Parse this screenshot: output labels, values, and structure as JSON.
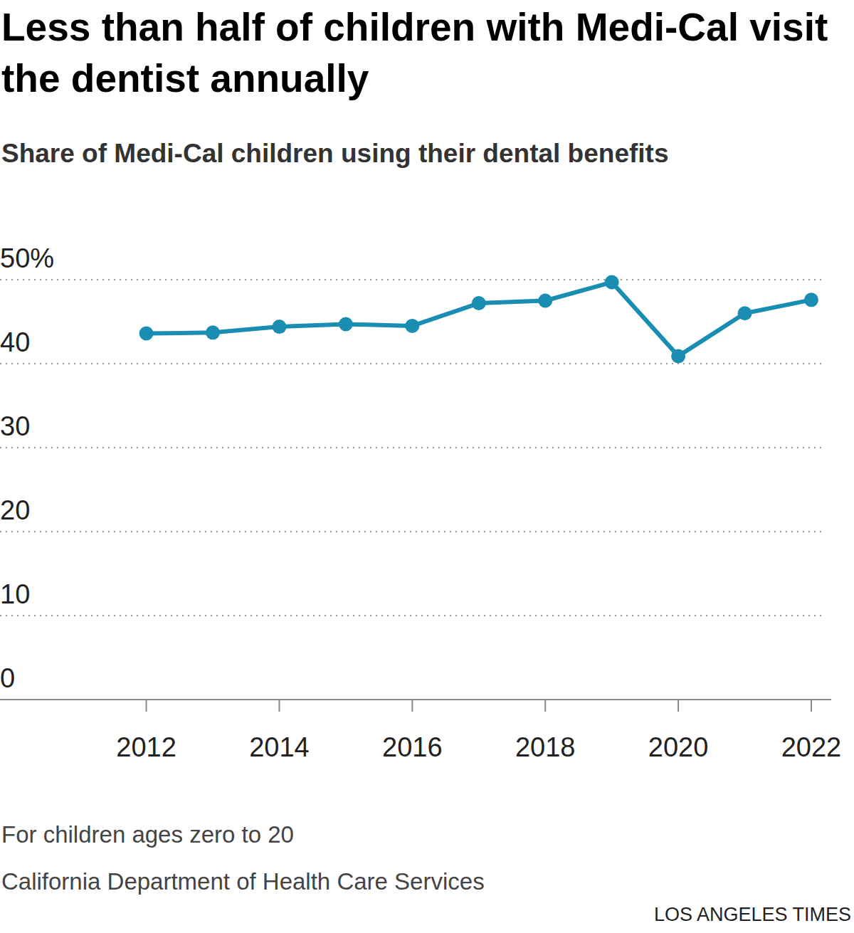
{
  "chart_data": {
    "type": "line",
    "title": "Less than half of children with Medi-Cal visit the dentist annually",
    "subtitle": "Share of Medi-Cal children using their dental benefits",
    "x": [
      2012,
      2013,
      2014,
      2015,
      2016,
      2017,
      2018,
      2019,
      2020,
      2021,
      2022
    ],
    "values": [
      43.6,
      43.7,
      44.4,
      44.7,
      44.5,
      47.2,
      47.5,
      49.7,
      40.9,
      46.0,
      47.6
    ],
    "color": "#1a8db3",
    "marker": "circle",
    "xlim": [
      2009.8,
      2022.3
    ],
    "xticks": [
      2012,
      2014,
      2016,
      2018,
      2020,
      2022
    ],
    "ylim": [
      0,
      50
    ],
    "yticks": [
      0,
      10,
      20,
      30,
      40,
      {
        "value": 50,
        "label": "50%"
      }
    ],
    "grid": true,
    "note": "For children ages zero to 20",
    "source": "California Department of Health Care Services",
    "credit": "LOS ANGELES TIMES"
  }
}
